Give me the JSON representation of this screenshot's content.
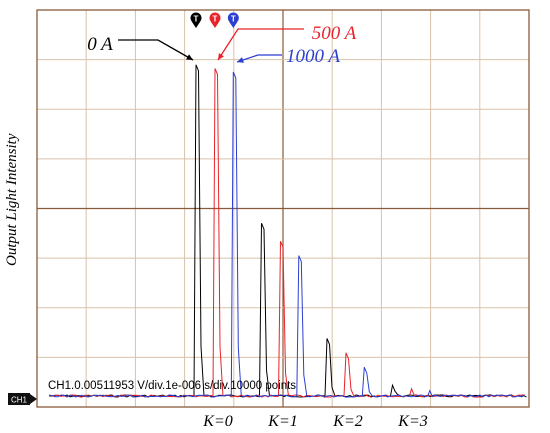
{
  "chart_data": {
    "type": "line",
    "ylabel": "Output Light Intensity",
    "grid": true,
    "status_text": "CH1.0.00511953 V/div.1e-006 s/div.10000 points",
    "channel_marker": "CH1",
    "trigger_marker": "T",
    "x_categories": [
      "K=0",
      "K=1",
      "K=2",
      "K=3"
    ],
    "series": [
      {
        "name": "0 A",
        "color": "#000000",
        "annotation": "0 A",
        "peaks": [
          {
            "k": 0,
            "x": 0.0,
            "amplitude": 0.92
          },
          {
            "k": 1,
            "x": 1.0,
            "amplitude": 0.48
          },
          {
            "k": 2,
            "x": 2.0,
            "amplitude": 0.16
          },
          {
            "k": 3,
            "x": 3.0,
            "amplitude": 0.03
          }
        ]
      },
      {
        "name": "500 A",
        "color": "#e8232a",
        "annotation": "500 A",
        "peaks": [
          {
            "k": 0,
            "x": 0.29,
            "amplitude": 0.91
          },
          {
            "k": 1,
            "x": 1.29,
            "amplitude": 0.43
          },
          {
            "k": 2,
            "x": 2.29,
            "amplitude": 0.12
          },
          {
            "k": 3,
            "x": 3.29,
            "amplitude": 0.02
          }
        ]
      },
      {
        "name": "1000 A",
        "color": "#2b3fd1",
        "annotation": "1000 A",
        "peaks": [
          {
            "k": 0,
            "x": 0.57,
            "amplitude": 0.9
          },
          {
            "k": 1,
            "x": 1.57,
            "amplitude": 0.39
          },
          {
            "k": 2,
            "x": 2.57,
            "amplitude": 0.08
          },
          {
            "k": 3,
            "x": 3.57,
            "amplitude": 0.015
          }
        ]
      }
    ]
  }
}
